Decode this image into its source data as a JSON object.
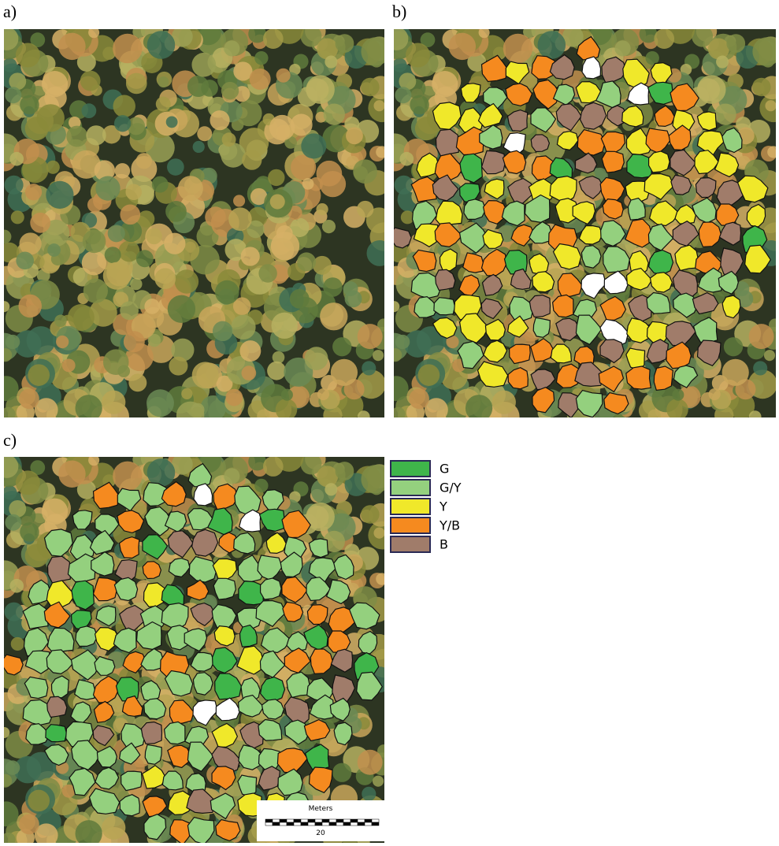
{
  "panels": [
    {
      "label": "a)"
    },
    {
      "label": "b)"
    },
    {
      "label": "c)"
    }
  ],
  "legend": [
    {
      "label": "G",
      "color": "#3fb54a"
    },
    {
      "label": "G/Y",
      "color": "#94d07e"
    },
    {
      "label": "Y",
      "color": "#f0e82a"
    },
    {
      "label": "Y/B",
      "color": "#f58a1f"
    },
    {
      "label": "B",
      "color": "#a07c6a"
    }
  ],
  "scale_bar": {
    "title": "Meters",
    "label": "20"
  }
}
